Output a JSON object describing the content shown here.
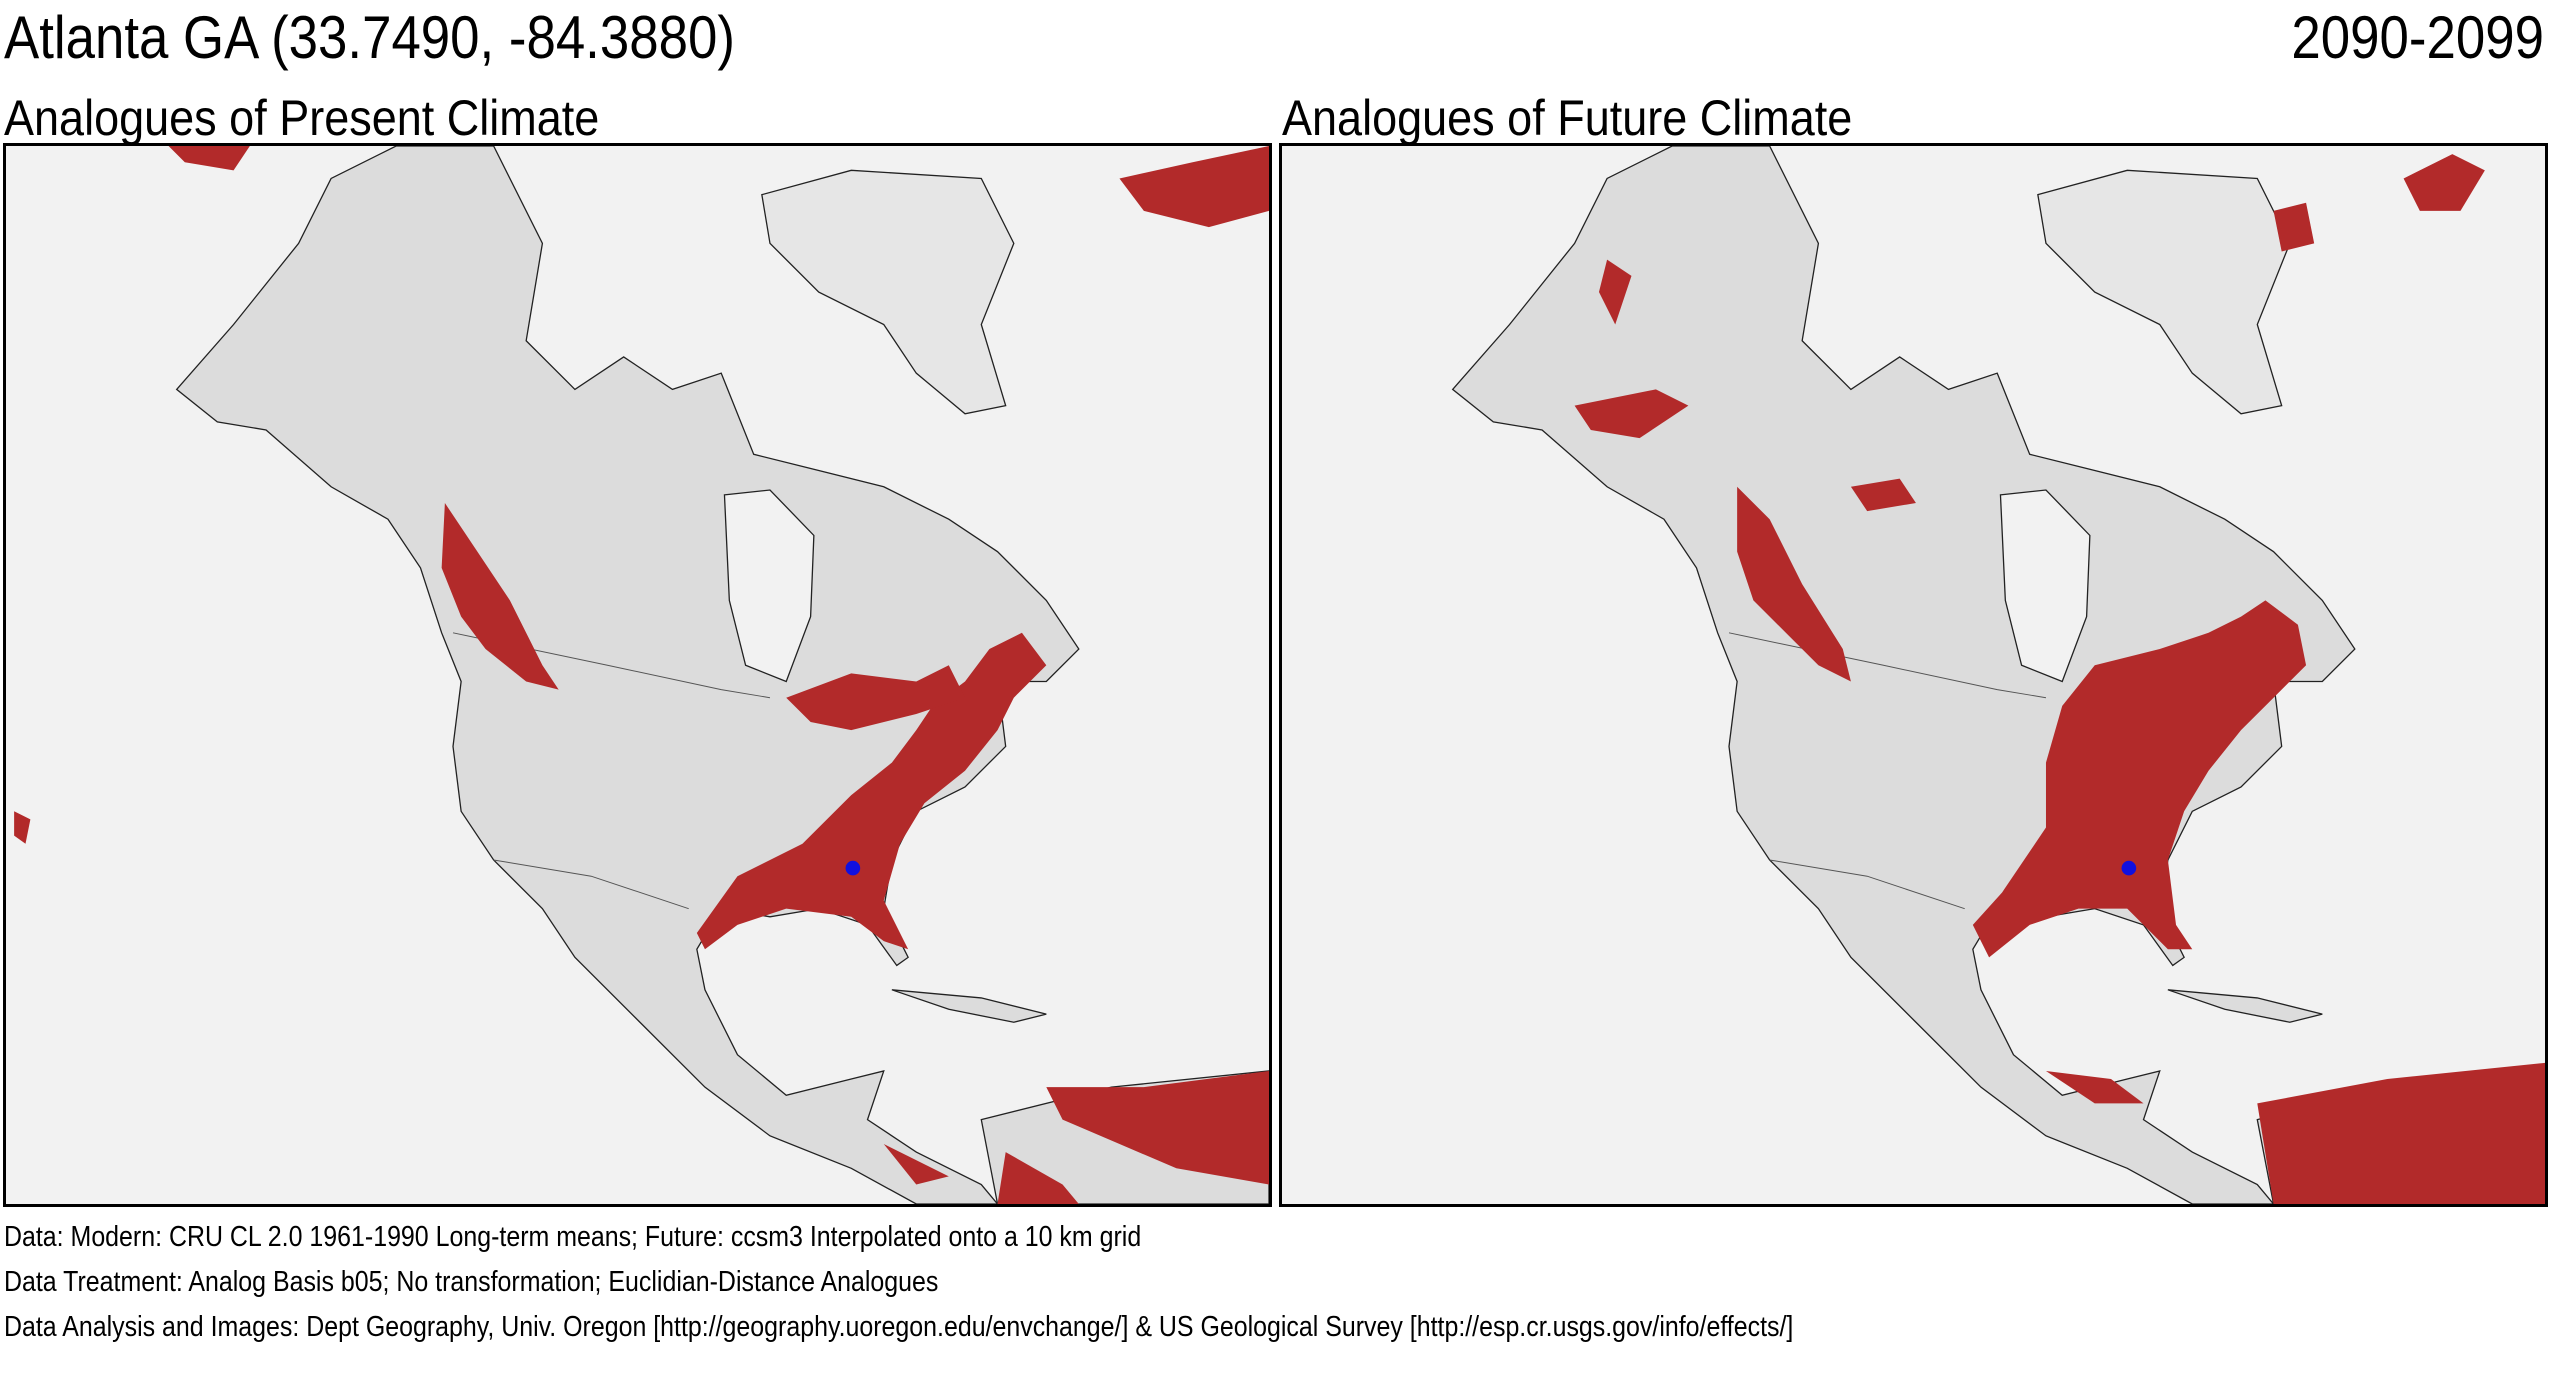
{
  "header": {
    "location": "Atlanta GA  (33.7490, -84.3880)",
    "period": "2090-2099"
  },
  "maps": [
    {
      "title": "Analogues of Present Climate",
      "type": "present"
    },
    {
      "title": "Analogues of Future Climate",
      "type": "future"
    }
  ],
  "colors": {
    "analog": "#b22a2a",
    "land": "#dcdcdc",
    "ocean": "#f2f2f2",
    "site": "#1010e0"
  },
  "footer": {
    "data": "Data:  Modern: CRU CL 2.0 1961-1990 Long-term means; Future: ccsm3 Interpolated onto a 10 km grid",
    "treatment": "Data Treatment:  Analog Basis b05; No transformation; Euclidian-Distance Analogues",
    "analysis": "Data Analysis and Images:  Dept Geography, Univ. Oregon [http://geography.uoregon.edu/envchange/] & US Geological Survey [http://esp.cr.usgs.gov/info/effects/]"
  }
}
